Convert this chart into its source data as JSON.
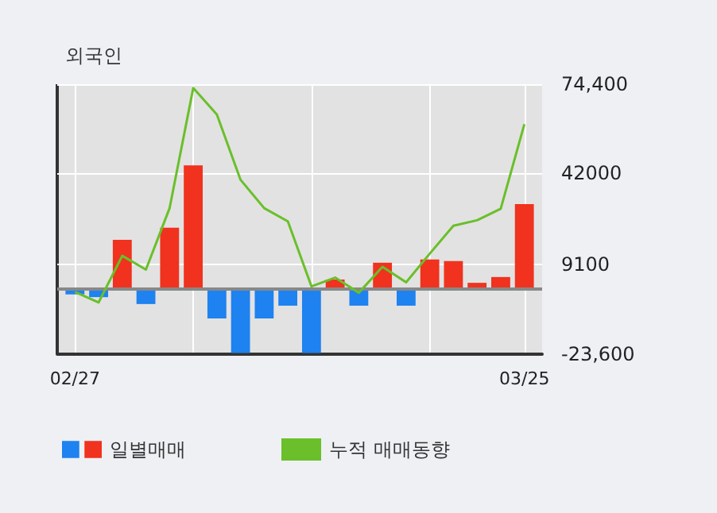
{
  "chart_data": {
    "type": "bar",
    "title": "외국인",
    "categories": [
      "02/27",
      null,
      null,
      null,
      null,
      null,
      null,
      null,
      null,
      null,
      null,
      null,
      null,
      null,
      null,
      null,
      null,
      null,
      null,
      "03/25"
    ],
    "series": [
      {
        "name": "일별매매",
        "values": [
          -1900,
          -2900,
          17900,
          -5400,
          22300,
          44900,
          -10600,
          -23200,
          -10600,
          -6000,
          -23200,
          3500,
          -6000,
          9600,
          -6000,
          10800,
          10200,
          2300,
          4400,
          30900
        ],
        "colors": [
          "#1e82f0",
          "#1e82f0",
          "#f0321e",
          "#1e82f0",
          "#f0321e",
          "#f0321e",
          "#1e82f0",
          "#1e82f0",
          "#1e82f0",
          "#1e82f0",
          "#1e82f0",
          "#f0321e",
          "#1e82f0",
          "#f0321e",
          "#1e82f0",
          "#f0321e",
          "#f0321e",
          "#f0321e",
          "#f0321e",
          "#f0321e"
        ]
      },
      {
        "name": "누적 매매동향",
        "type": "line",
        "color": "#6abf2a",
        "values": [
          -1000,
          -4800,
          12100,
          7100,
          29400,
          73000,
          63400,
          39700,
          29400,
          24600,
          1000,
          4200,
          -1300,
          8100,
          2500,
          12900,
          23000,
          25000,
          29200,
          59900
        ]
      }
    ],
    "ylim": [
      -23600,
      74400
    ],
    "yticks": [
      {
        "value": -23600,
        "label": "-23,600"
      },
      9100,
      42000,
      {
        "value": 74400,
        "label": "74,400"
      }
    ],
    "ref_lines": [
      {
        "axis": "y",
        "value": 0,
        "color": "#888888"
      }
    ],
    "grid": true,
    "legend": "bottom",
    "marker": "none",
    "line_style": "solid"
  }
}
